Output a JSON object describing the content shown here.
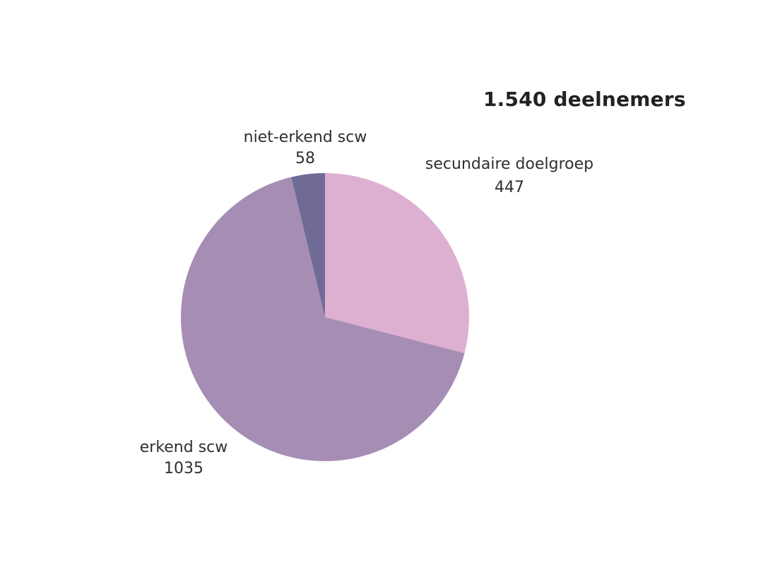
{
  "chart_data": {
    "type": "pie",
    "title": "1.540 deelnemers",
    "slices": [
      {
        "label": "secundaire doelgroep",
        "value": 447,
        "display_value": "447",
        "color": "#ddb0d2"
      },
      {
        "label": "erkend scw",
        "value": 1035,
        "display_value": "1035",
        "color": "#a68db4"
      },
      {
        "label": "niet-erkend scw",
        "value": 58,
        "display_value": "58",
        "color": "#6f6b96"
      }
    ],
    "start_angle": "top",
    "direction": "clockwise",
    "legend": "none"
  }
}
